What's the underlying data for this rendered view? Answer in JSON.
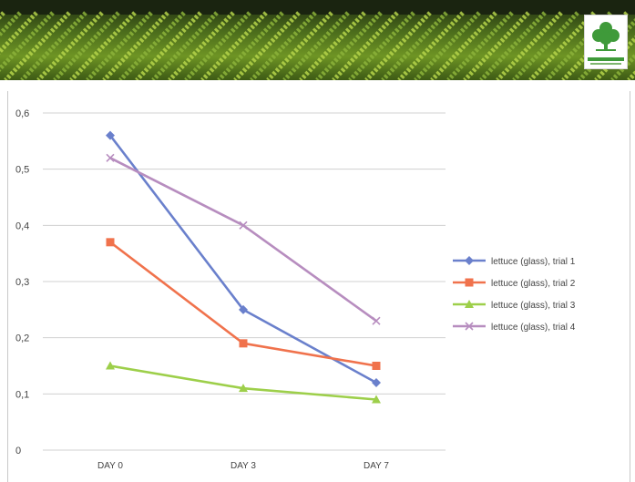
{
  "header": {
    "logo": "green-tree-logo"
  },
  "colors": {
    "trial1": "#6a80cc",
    "trial2": "#f0724c",
    "trial3": "#9dcf4a",
    "trial4": "#b78dbf",
    "grid": "#d0d0d0"
  },
  "chart_data": {
    "type": "line",
    "title": "",
    "xlabel": "",
    "ylabel": "",
    "categories": [
      "DAY 0",
      "DAY 3",
      "DAY 7"
    ],
    "y_ticks": [
      "0",
      "0,1",
      "0,2",
      "0,3",
      "0,4",
      "0,5",
      "0,6"
    ],
    "ylim": [
      0,
      0.6
    ],
    "grid": true,
    "legend_position": "right",
    "series": [
      {
        "name": "lettuce (glass), trial 1",
        "values": [
          0.56,
          0.25,
          0.12
        ],
        "marker": "diamond",
        "color": "#6a80cc"
      },
      {
        "name": "lettuce (glass), trial 2",
        "values": [
          0.37,
          0.19,
          0.15
        ],
        "marker": "square",
        "color": "#f0724c"
      },
      {
        "name": "lettuce (glass), trial 3",
        "values": [
          0.15,
          0.11,
          0.09
        ],
        "marker": "triangle",
        "color": "#9dcf4a"
      },
      {
        "name": "lettuce (glass), trial 4",
        "values": [
          0.52,
          0.4,
          0.23
        ],
        "marker": "x",
        "color": "#b78dbf"
      }
    ]
  }
}
